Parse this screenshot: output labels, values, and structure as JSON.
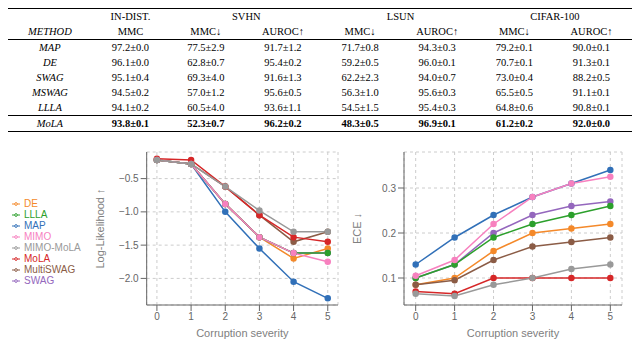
{
  "chart_data": [
    {
      "type": "table",
      "header": "METHOD",
      "groups": [
        {
          "name": "IN-DIST.",
          "columns": [
            "MMC"
          ]
        },
        {
          "name": "SVHN",
          "columns": [
            "MMC↓",
            "AUROC↑"
          ]
        },
        {
          "name": "LSUN",
          "columns": [
            "MMC↓",
            "AUROC↑"
          ]
        },
        {
          "name": "CIFAR-100",
          "columns": [
            "MMC↓",
            "AUROC↑"
          ]
        }
      ],
      "rows": [
        {
          "name": "MAP",
          "values": [
            "97.2±0.0",
            "77.5±2.9",
            "91.7±1.2",
            "71.7±0.8",
            "94.3±0.3",
            "79.2±0.1",
            "90.0±0.1"
          ]
        },
        {
          "name": "DE",
          "values": [
            "96.1±0.0",
            "62.8±0.7",
            "95.4±0.2",
            "59.2±0.5",
            "96.0±0.1",
            "70.7±0.1",
            "91.3±0.1"
          ]
        },
        {
          "name": "SWAG",
          "values": [
            "95.1±0.4",
            "69.3±4.0",
            "91.6±1.3",
            "62.2±2.3",
            "94.0±0.7",
            "73.0±0.4",
            "88.2±0.5"
          ]
        },
        {
          "name": "MSWAG",
          "values": [
            "94.5±0.2",
            "57.0±1.2",
            "95.6±0.5",
            "56.3±1.0",
            "95.6±0.3",
            "65.5±0.5",
            "91.1±0.1"
          ]
        },
        {
          "name": "LLLA",
          "values": [
            "94.1±0.2",
            "60.5±4.0",
            "93.6±1.1",
            "54.5±1.5",
            "95.4±0.3",
            "64.8±0.6",
            "90.8±0.1"
          ]
        }
      ],
      "summary_row": {
        "name": "MoLA",
        "values": [
          "93.8±0.1",
          "52.3±0.7",
          "96.2±0.2",
          "48.3±0.5",
          "96.9±0.1",
          "61.2±0.2",
          "92.0±0.0"
        ]
      }
    },
    {
      "type": "line",
      "x_label": "Corruption severity",
      "y_label": "Log-Likelihood ↑",
      "x": [
        0,
        1,
        2,
        3,
        4,
        5
      ],
      "xlim": [
        -0.3,
        5.3
      ],
      "xticks": [
        0,
        1,
        2,
        3,
        4,
        5
      ],
      "ylim": [
        -2.4,
        -0.1
      ],
      "yticks": [
        {
          "value": -2.0,
          "label": "−2.0"
        },
        {
          "value": -1.5,
          "label": "−1.5"
        },
        {
          "value": -1.0,
          "label": "−1.0"
        },
        {
          "value": -0.5,
          "label": "−0.5"
        }
      ],
      "grid": true,
      "legend": "left",
      "marker": "circle",
      "series": [
        {
          "name": "MAP",
          "color": "#3170b8",
          "values": [
            -0.22,
            -0.28,
            -1.0,
            -1.55,
            -2.05,
            -2.3
          ]
        },
        {
          "name": "DE",
          "color": "#f4892a",
          "values": [
            -0.22,
            -0.28,
            -0.88,
            -1.38,
            -1.7,
            -1.55
          ]
        },
        {
          "name": "SWAG",
          "color": "#9467bd",
          "values": [
            -0.22,
            -0.28,
            -0.88,
            -1.38,
            -1.62,
            -1.62
          ]
        },
        {
          "name": "MultiSWAG",
          "color": "#8b5c46",
          "values": [
            -0.22,
            -0.28,
            -0.62,
            -1.05,
            -1.45,
            -1.3
          ]
        },
        {
          "name": "LLLA",
          "color": "#2ca02c",
          "values": [
            -0.22,
            -0.28,
            -0.88,
            -1.38,
            -1.62,
            -1.62
          ]
        },
        {
          "name": "MoLA",
          "color": "#d62728",
          "values": [
            -0.2,
            -0.22,
            -0.62,
            -1.05,
            -1.38,
            -1.45
          ]
        },
        {
          "name": "MIMO",
          "color": "#f781bf",
          "values": [
            -0.22,
            -0.28,
            -0.88,
            -1.38,
            -1.62,
            -1.75
          ]
        },
        {
          "name": "MIMO-MoLA",
          "color": "#999999",
          "values": [
            -0.22,
            -0.28,
            -0.62,
            -0.98,
            -1.3,
            -1.3
          ]
        }
      ]
    },
    {
      "type": "line",
      "x_label": "Corruption severity",
      "y_label": "ECE ↓",
      "x": [
        0,
        1,
        2,
        3,
        4,
        5
      ],
      "xlim": [
        -0.3,
        5.3
      ],
      "xticks": [
        0,
        1,
        2,
        3,
        4,
        5
      ],
      "ylim": [
        0.04,
        0.38
      ],
      "yticks": [
        0.1,
        0.2,
        0.3
      ],
      "grid": true,
      "marker": "circle",
      "series": [
        {
          "name": "MAP",
          "color": "#3170b8",
          "values": [
            0.13,
            0.19,
            0.24,
            0.28,
            0.31,
            0.34
          ]
        },
        {
          "name": "DE",
          "color": "#f4892a",
          "values": [
            0.085,
            0.1,
            0.16,
            0.2,
            0.21,
            0.22
          ]
        },
        {
          "name": "SWAG",
          "color": "#9467bd",
          "values": [
            0.1,
            0.13,
            0.2,
            0.24,
            0.26,
            0.27
          ]
        },
        {
          "name": "MultiSWAG",
          "color": "#8b5c46",
          "values": [
            0.085,
            0.095,
            0.14,
            0.17,
            0.18,
            0.19
          ]
        },
        {
          "name": "LLLA",
          "color": "#2ca02c",
          "values": [
            0.1,
            0.13,
            0.19,
            0.22,
            0.24,
            0.26
          ]
        },
        {
          "name": "MoLA",
          "color": "#d62728",
          "values": [
            0.07,
            0.065,
            0.1,
            0.1,
            0.1,
            0.1
          ]
        },
        {
          "name": "MIMO",
          "color": "#f781bf",
          "values": [
            0.105,
            0.14,
            0.22,
            0.28,
            0.31,
            0.325
          ]
        },
        {
          "name": "MIMO-MoLA",
          "color": "#999999",
          "values": [
            0.065,
            0.06,
            0.085,
            0.1,
            0.12,
            0.13
          ]
        }
      ]
    }
  ]
}
